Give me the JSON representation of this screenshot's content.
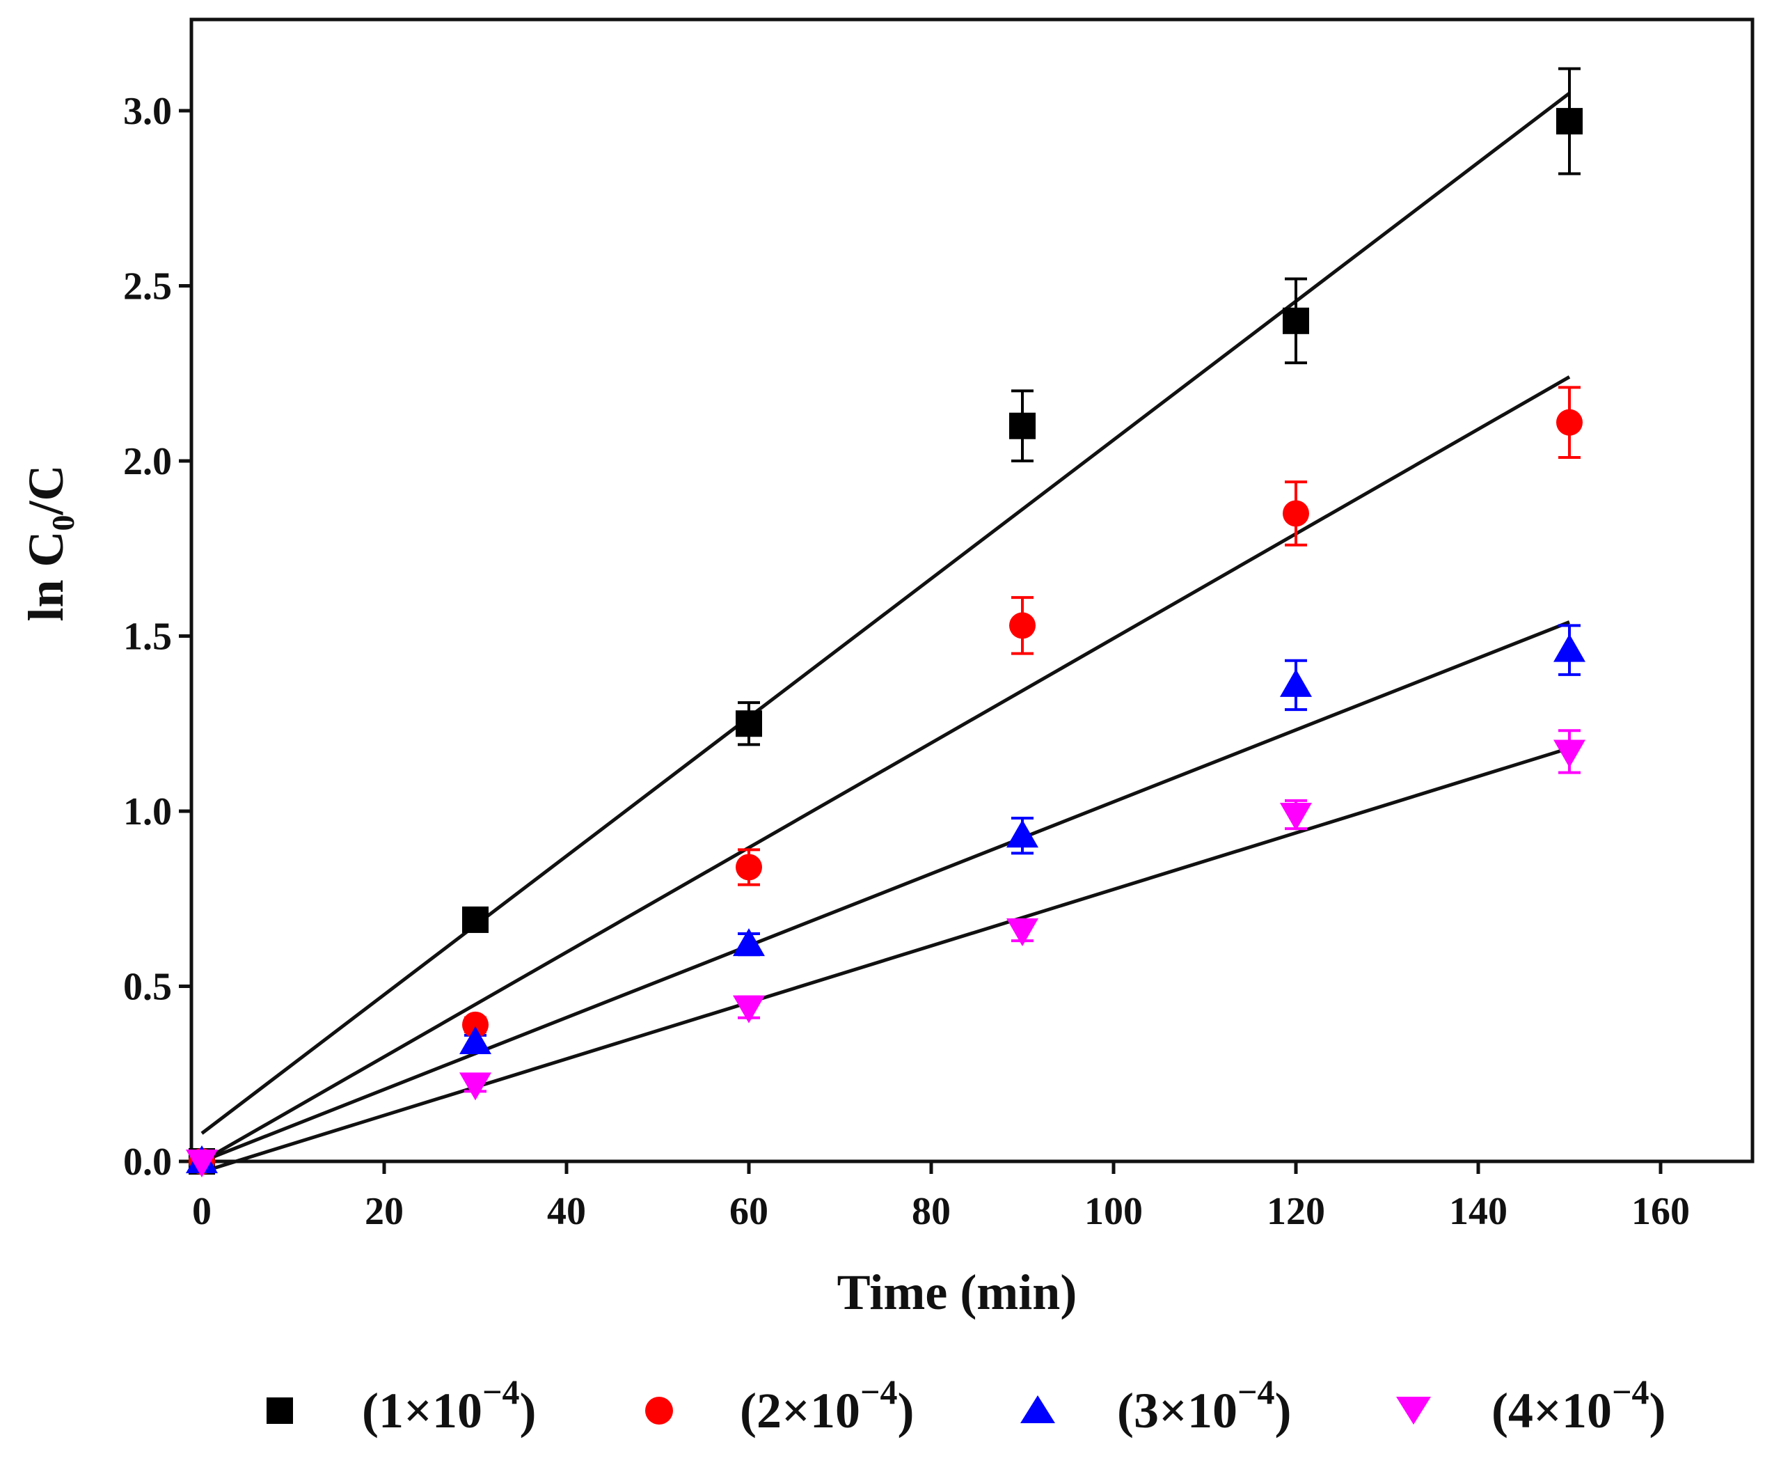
{
  "chart_data": {
    "type": "scatter",
    "title": "",
    "xlabel": "Time (min)",
    "ylabel": {
      "prefix": "ln C",
      "subscript": "0",
      "suffix": "/C"
    },
    "xlim": [
      -3,
      170
    ],
    "ylim": [
      0,
      3.25
    ],
    "xticks": [
      0,
      20,
      40,
      60,
      80,
      100,
      120,
      140,
      160
    ],
    "xtick_labels": [
      "0",
      "20",
      "40",
      "60",
      "80",
      "100",
      "120",
      "140",
      "160"
    ],
    "yticks": [
      0.0,
      0.5,
      1.0,
      1.5,
      2.0,
      2.5,
      3.0
    ],
    "ytick_labels": [
      "0.0",
      "0.5",
      "1.0",
      "1.5",
      "2.0",
      "2.5",
      "3.0"
    ],
    "grid": false,
    "legend_position": "bottom",
    "x": [
      0,
      30,
      60,
      90,
      120,
      150
    ],
    "series": [
      {
        "name": "(1×10−4)",
        "legend": {
          "open": "(1×10",
          "exp": "−4",
          "close": ")"
        },
        "marker": "square",
        "color": "#000000",
        "values": [
          0.0,
          0.69,
          1.25,
          2.1,
          2.4,
          2.97
        ],
        "errors": [
          0.0,
          0.03,
          0.06,
          0.1,
          0.12,
          0.15
        ],
        "fit": {
          "x": [
            0,
            150
          ],
          "y": [
            0.08,
            3.05
          ]
        }
      },
      {
        "name": "(2×10−4)",
        "legend": {
          "open": "(2×10",
          "exp": "−4",
          "close": ")"
        },
        "marker": "circle",
        "color": "#ff0000",
        "values": [
          0.0,
          0.39,
          0.84,
          1.53,
          1.85,
          2.11
        ],
        "errors": [
          0.0,
          0.02,
          0.05,
          0.08,
          0.09,
          0.1
        ],
        "fit": {
          "x": [
            0,
            150
          ],
          "y": [
            0.0,
            2.24
          ]
        }
      },
      {
        "name": "(3×10−4)",
        "legend": {
          "open": "(3×10",
          "exp": "−4",
          "close": ")"
        },
        "marker": "triangle-up",
        "color": "#0000ff",
        "values": [
          0.0,
          0.34,
          0.62,
          0.93,
          1.36,
          1.46
        ],
        "errors": [
          0.0,
          0.02,
          0.03,
          0.05,
          0.07,
          0.07
        ],
        "fit": {
          "x": [
            0,
            150
          ],
          "y": [
            0.0,
            1.54
          ]
        }
      },
      {
        "name": "(4×10−4)",
        "legend": {
          "open": "(4×10",
          "exp": "−4",
          "close": ")"
        },
        "marker": "triangle-down",
        "color": "#ff00ff",
        "values": [
          0.0,
          0.22,
          0.44,
          0.66,
          0.99,
          1.17
        ],
        "errors": [
          0.0,
          0.02,
          0.03,
          0.03,
          0.04,
          0.06
        ],
        "fit": {
          "x": [
            0,
            150
          ],
          "y": [
            -0.03,
            1.18
          ]
        }
      }
    ]
  }
}
